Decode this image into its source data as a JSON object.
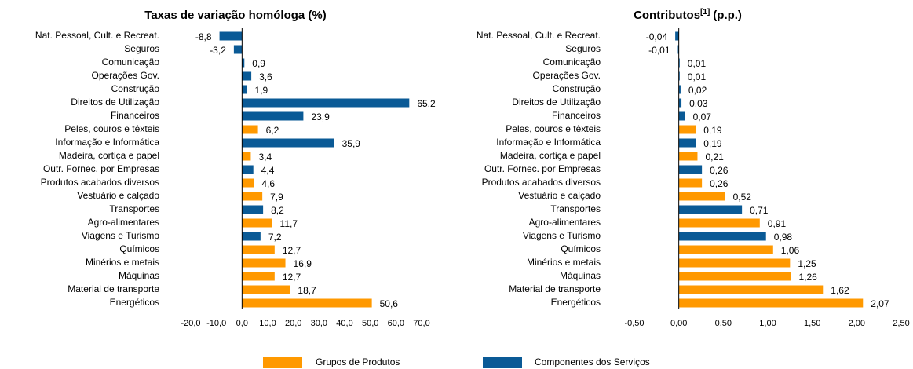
{
  "chart_data": [
    {
      "type": "bar",
      "orientation": "horizontal",
      "title": "Taxas de variação homóloga (%)",
      "categories": [
        "Nat. Pessoal, Cult. e Recreat.",
        "Seguros",
        "Comunicação",
        "Operações Gov.",
        "Construção",
        "Direitos de Utilização",
        "Financeiros",
        "Peles, couros e têxteis",
        "Informação e Informática",
        "Madeira, cortiça e papel",
        "Outr. Fornec. por Empresas",
        "Produtos acabados diversos",
        "Vestuário e calçado",
        "Transportes",
        "Agro-alimentares",
        "Viagens e Turismo",
        "Químicos",
        "Minérios e metais",
        "Máquinas",
        "Material de transporte",
        "Energéticos"
      ],
      "series": [
        {
          "name": "Grupos de Produtos",
          "color": "#ff9900",
          "values": [
            null,
            null,
            null,
            null,
            null,
            null,
            null,
            6.2,
            null,
            3.4,
            null,
            4.6,
            7.9,
            null,
            11.7,
            null,
            12.7,
            16.9,
            12.7,
            18.7,
            50.6
          ],
          "value_labels": [
            null,
            null,
            null,
            null,
            null,
            null,
            null,
            "6,2",
            null,
            "3,4",
            null,
            "4,6",
            "7,9",
            null,
            "11,7",
            null,
            "12,7",
            "16,9",
            "12,7",
            "18,7",
            "50,6"
          ]
        },
        {
          "name": "Componentes dos Serviços",
          "color": "#0a5a96",
          "values": [
            -8.8,
            -3.2,
            0.9,
            3.6,
            1.9,
            65.2,
            23.9,
            null,
            35.9,
            null,
            4.4,
            null,
            null,
            8.2,
            null,
            7.2,
            null,
            null,
            null,
            null,
            null
          ],
          "value_labels": [
            "-8,8",
            "-3,2",
            "0,9",
            "3,6",
            "1,9",
            "65,2",
            "23,9",
            null,
            "35,9",
            null,
            "4,4",
            null,
            null,
            "8,2",
            null,
            "7,2",
            null,
            null,
            null,
            null,
            null
          ]
        }
      ],
      "xlim": [
        -20,
        70
      ],
      "xticks": [
        {
          "value": -20,
          "label": "-20,0"
        },
        {
          "value": -10,
          "label": "-10,0"
        },
        {
          "value": 0,
          "label": "0,0"
        },
        {
          "value": 10,
          "label": "10,0"
        },
        {
          "value": 20,
          "label": "20,0"
        },
        {
          "value": 30,
          "label": "30,0"
        },
        {
          "value": 40,
          "label": "40,0"
        },
        {
          "value": 50,
          "label": "50,0"
        },
        {
          "value": 60,
          "label": "60,0"
        },
        {
          "value": 70,
          "label": "70,0"
        }
      ]
    },
    {
      "type": "bar",
      "orientation": "horizontal",
      "title": "Contributos",
      "title_note": "[1]",
      "title_unit": "(p.p.)",
      "categories": [
        "Nat. Pessoal, Cult. e Recreat.",
        "Seguros",
        "Comunicação",
        "Operações Gov.",
        "Construção",
        "Direitos de Utilização",
        "Financeiros",
        "Peles, couros e têxteis",
        "Informação e Informática",
        "Madeira, cortiça e papel",
        "Outr. Fornec. por Empresas",
        "Produtos acabados diversos",
        "Vestuário e calçado",
        "Transportes",
        "Agro-alimentares",
        "Viagens e Turismo",
        "Químicos",
        "Minérios e metais",
        "Máquinas",
        "Material de transporte",
        "Energéticos"
      ],
      "series": [
        {
          "name": "Grupos de Produtos",
          "color": "#ff9900",
          "values": [
            null,
            null,
            null,
            null,
            null,
            null,
            null,
            0.19,
            null,
            0.21,
            null,
            0.26,
            0.52,
            null,
            0.91,
            null,
            1.06,
            1.25,
            1.26,
            1.62,
            2.07
          ],
          "value_labels": [
            null,
            null,
            null,
            null,
            null,
            null,
            null,
            "0,19",
            null,
            "0,21",
            null,
            "0,26",
            "0,52",
            null,
            "0,91",
            null,
            "1,06",
            "1,25",
            "1,26",
            "1,62",
            "2,07"
          ]
        },
        {
          "name": "Componentes dos Serviços",
          "color": "#0a5a96",
          "values": [
            -0.04,
            -0.01,
            0.01,
            0.01,
            0.02,
            0.03,
            0.07,
            null,
            0.19,
            null,
            0.26,
            null,
            null,
            0.71,
            null,
            0.98,
            null,
            null,
            null,
            null,
            null
          ],
          "value_labels": [
            "-0,04",
            "-0,01",
            "0,01",
            "0,01",
            "0,02",
            "0,03",
            "0,07",
            null,
            "0,19",
            null,
            "0,26",
            null,
            null,
            "0,71",
            null,
            "0,98",
            null,
            null,
            null,
            null,
            null
          ]
        }
      ],
      "xlim": [
        -0.5,
        2.5
      ],
      "xticks": [
        {
          "value": -0.5,
          "label": "-0,50"
        },
        {
          "value": 0,
          "label": "0,00"
        },
        {
          "value": 0.5,
          "label": "0,50"
        },
        {
          "value": 1,
          "label": "1,00"
        },
        {
          "value": 1.5,
          "label": "1,50"
        },
        {
          "value": 2,
          "label": "2,00"
        },
        {
          "value": 2.5,
          "label": "2,50"
        }
      ]
    }
  ]
}
